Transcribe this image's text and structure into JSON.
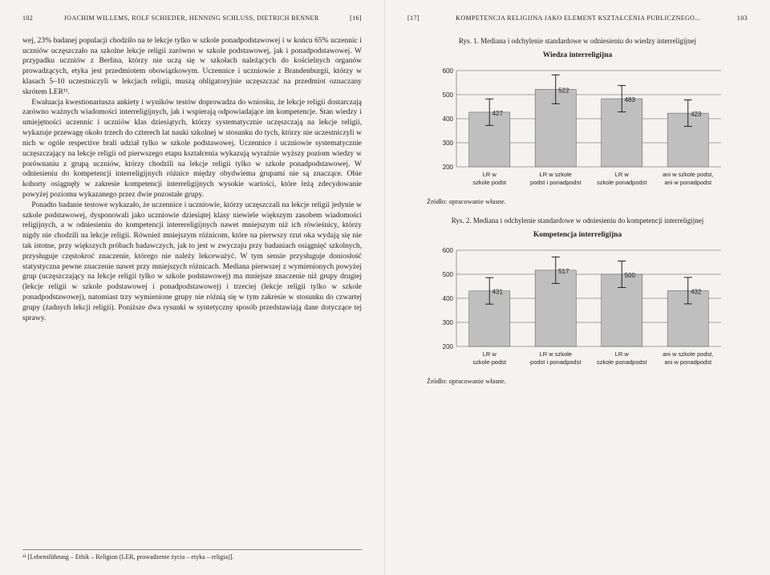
{
  "left": {
    "pagenum": "102",
    "header": "JOACHIM WILLEMS, ROLF SCHIEDER, HENNING SCHLUSS, DIETRICH BENNER",
    "header_suffix": "[16]",
    "p1": "wej, 23% badanej populacji chodziło na te lekcje tylko w szkole ponadpodstawowej i w końcu 65% uczennic i uczniów uczęszczało na szkolne lekcje religii zarówno w szkole podstawowej, jak i ponadpodstawowej. W przypadku uczniów z Berlina, którzy nie uczą się w szkołach należących do kościelnych organów prowadzących, etyka jest przedmiotem obowiązkowym. Uczennice i uczniowie z Brandenburgii, którzy w klasach 5–10 uczestniczyli w lekcjach religii, muszą obligatoryjnie uczęszczać na przedmiot oznaczany skrótem LER¹¹.",
    "p2": "Ewaluacja kwestionariusza ankiety i wyników testów doprowadza do wniosku, że lekcje religii dostarczają zarówno ważnych wiadomości interreligijnych, jak i wspierają odpowiadające im kompetencje. Stan wiedzy i umiejętności uczennic i uczniów klas dziesiątych, którzy systematycznie uczęszczają na lekcje religii, wykazuje przewagę około trzech do czterech lat nauki szkolnej w stosunku do tych, którzy nie uczestniczyli w nich w ogóle respective brali udział tylko w szkole podstawowej. Uczennice i uczniowie systematycznie uczęszczający na lekcje religii od pierwszego etapu kształcenia wykazują wyraźnie wyższy poziom wiedzy w porównaniu z grupą uczniów, którzy chodzili na lekcje religii tylko w szkole ponadpodstawowej. W odniesieniu do kompetencji interreligijnych różnice między obydwiema grupami nie są znaczące. Obie kohorty osiągnęły w zakresie kompetencji interreligijnych wysokie wartości, które leżą zdecydowanie powyżej poziomu wykazanego przez dwie pozostałe grupy.",
    "p3": "Ponadto badanie testowe wykazało, że uczennice i uczniowie, którzy uczęszczali na lekcje religii jedynie w szkole podstawowej, dysponowali jako uczniowie dziesiątej klasy niewiele większym zasobem wiadomości religijnych, a w odniesieniu do kompetencji interereligijnych nawet mniejszym niż ich rówieśnicy, którzy nigdy nie chodzili na lekcje religii. Również mniejszym różnicom, które na pierwszy rzut oka wydają się nie tak istotne, przy większych próbach badawczych, jak to jest w zwyczaju przy badaniach osiągnięć szkolnych, przysługuje częstokroć znaczenie, którego nie należy lekceważyć. W tym sensie przysługuje doniosłość statystyczna pewne znaczenie nawet przy mniejszych różnicach. Mediana pierwszej z wymienionych powyżej grup (uczęszczający na lekcje religii tylko w szkole podstawowej) ma mniejsze znaczenie niż grupy drugiej (lekcje religii w szkole podstawowej i ponadpodstawowej) i trzeciej (lekcje religii tylko w szkole ponadpodstawowej), natomiast trzy wymienione grupy nie różnią się w tym zakresie w stosunku do czwartej grupy (żadnych lekcji religii). Poniższe dwa rysunki w syntetyczny sposób przedstawiają dane dotyczące tej sprawy.",
    "footnote": "¹¹ [Lebensführung – Ethik – Religion (LER, prowadzenie życia – etyka – religia)]."
  },
  "right": {
    "header_prefix": "[17]",
    "header": "KOMPETENCJA RELIGIJNA JAKO ELEMENT KSZTAŁCENIA PUBLICZNEGO...",
    "pagenum": "103",
    "fig1_caption": "Rys. 1. Mediana i odchylenie standardowe w odniesieniu do wiedzy interreligijnej",
    "fig1_title": "Wiedza interreligijna",
    "fig2_caption": "Rys. 2. Mediana i odchylenie standardowe w odniesieniu do kompetencji interreligijnej",
    "fig2_title": "Kompetencja interreligijna",
    "source": "Źródło: opracowanie własne.",
    "chart1": {
      "type": "bar",
      "ymin": 200,
      "ymax": 600,
      "ystep": 100,
      "categories": [
        "LR w szkole podst",
        "LR w szkole podst i ponadpodst",
        "LR w szkole ponadpodst",
        "ani w szkole podst, ani w ponadpodst"
      ],
      "values": [
        427,
        522,
        483,
        423
      ],
      "errors": [
        55,
        60,
        55,
        55
      ],
      "bar_color": "#bfbfbf",
      "bar_stroke": "#555555",
      "err_color": "#222222",
      "grid_color": "#888888",
      "bg_color": "#f5f3ef"
    },
    "chart2": {
      "type": "bar",
      "ymin": 200,
      "ymax": 600,
      "ystep": 100,
      "categories": [
        "LR w szkole podst",
        "LR w szkole podst i ponadpodst",
        "LR w szkole ponadpodst",
        "ani w szkole podst, ani w ponadpodst"
      ],
      "values": [
        431,
        517,
        500,
        432
      ],
      "errors": [
        55,
        55,
        55,
        55
      ],
      "bar_color": "#bfbfbf",
      "bar_stroke": "#555555",
      "err_color": "#222222",
      "grid_color": "#888888",
      "bg_color": "#f5f3ef"
    }
  }
}
